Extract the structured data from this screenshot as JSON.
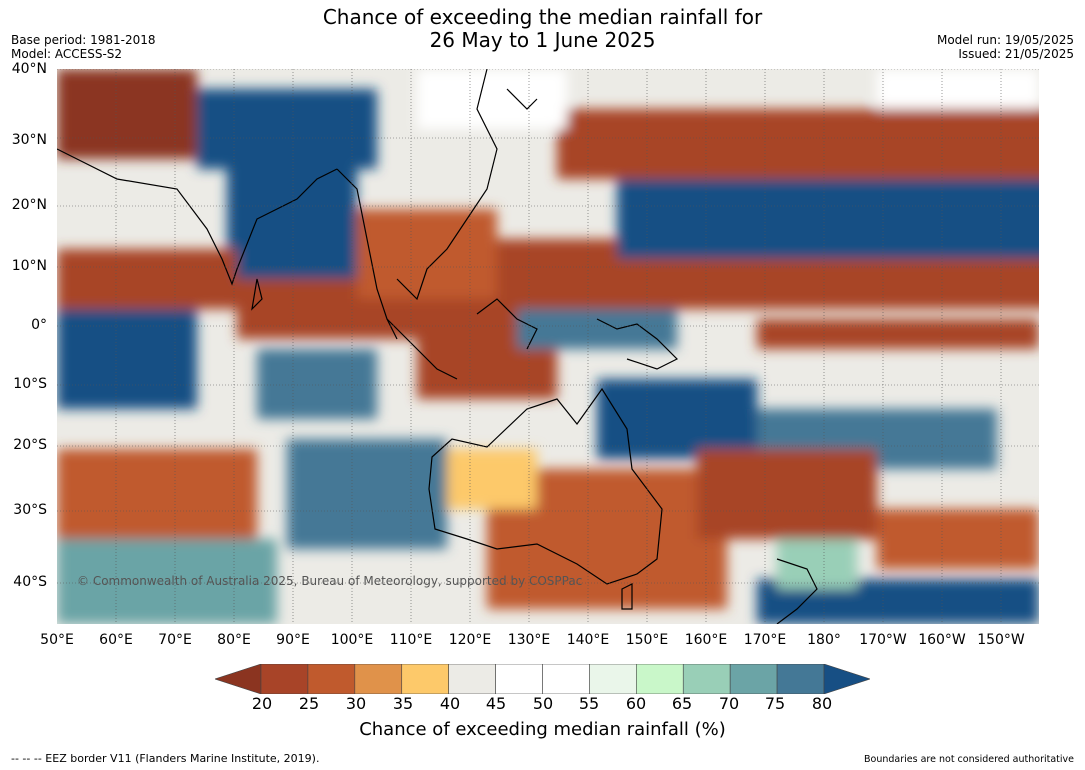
{
  "header": {
    "title_line1": "Chance of exceeding the median rainfall for",
    "title_line2": "26 May to 1 June 2025",
    "base_period": "Base period: 1981-2018",
    "model": "Model: ACCESS-S2",
    "model_run": "Model run: 19/05/2025",
    "issued": "Issued: 21/05/2025"
  },
  "map": {
    "copyright": "© Commonwealth of Australia 2025, Bureau of Meteorology, supported by COSPPac",
    "lat_labels": [
      "40°N",
      "30°N",
      "20°N",
      "10°N",
      "0°",
      "10°S",
      "20°S",
      "30°S",
      "40°S"
    ],
    "lon_labels": [
      "50°E",
      "60°E",
      "70°E",
      "80°E",
      "90°E",
      "100°E",
      "110°E",
      "120°E",
      "130°E",
      "140°E",
      "150°E",
      "160°E",
      "170°E",
      "180°",
      "170°W",
      "160°W",
      "150°W"
    ]
  },
  "colorbar": {
    "ticks": [
      "20",
      "25",
      "30",
      "35",
      "40",
      "45",
      "50",
      "55",
      "60",
      "65",
      "70",
      "75",
      "80"
    ],
    "colors": [
      "#8b3420",
      "#a84428",
      "#c05a2d",
      "#e0924a",
      "#fdc96a",
      "#ecebe6",
      "#ffffff",
      "#ffffff",
      "#eaf6ea",
      "#c9f7c9",
      "#99cfb7",
      "#6ba4a6",
      "#447896",
      "#174f84"
    ],
    "title": "Chance of exceeding median rainfall (%)"
  },
  "footer": {
    "eez_note": "--  --  -- EEZ border V11 (Flanders Marine Institute, 2019).",
    "boundaries_note": "Boundaries are not considered authoritative"
  }
}
